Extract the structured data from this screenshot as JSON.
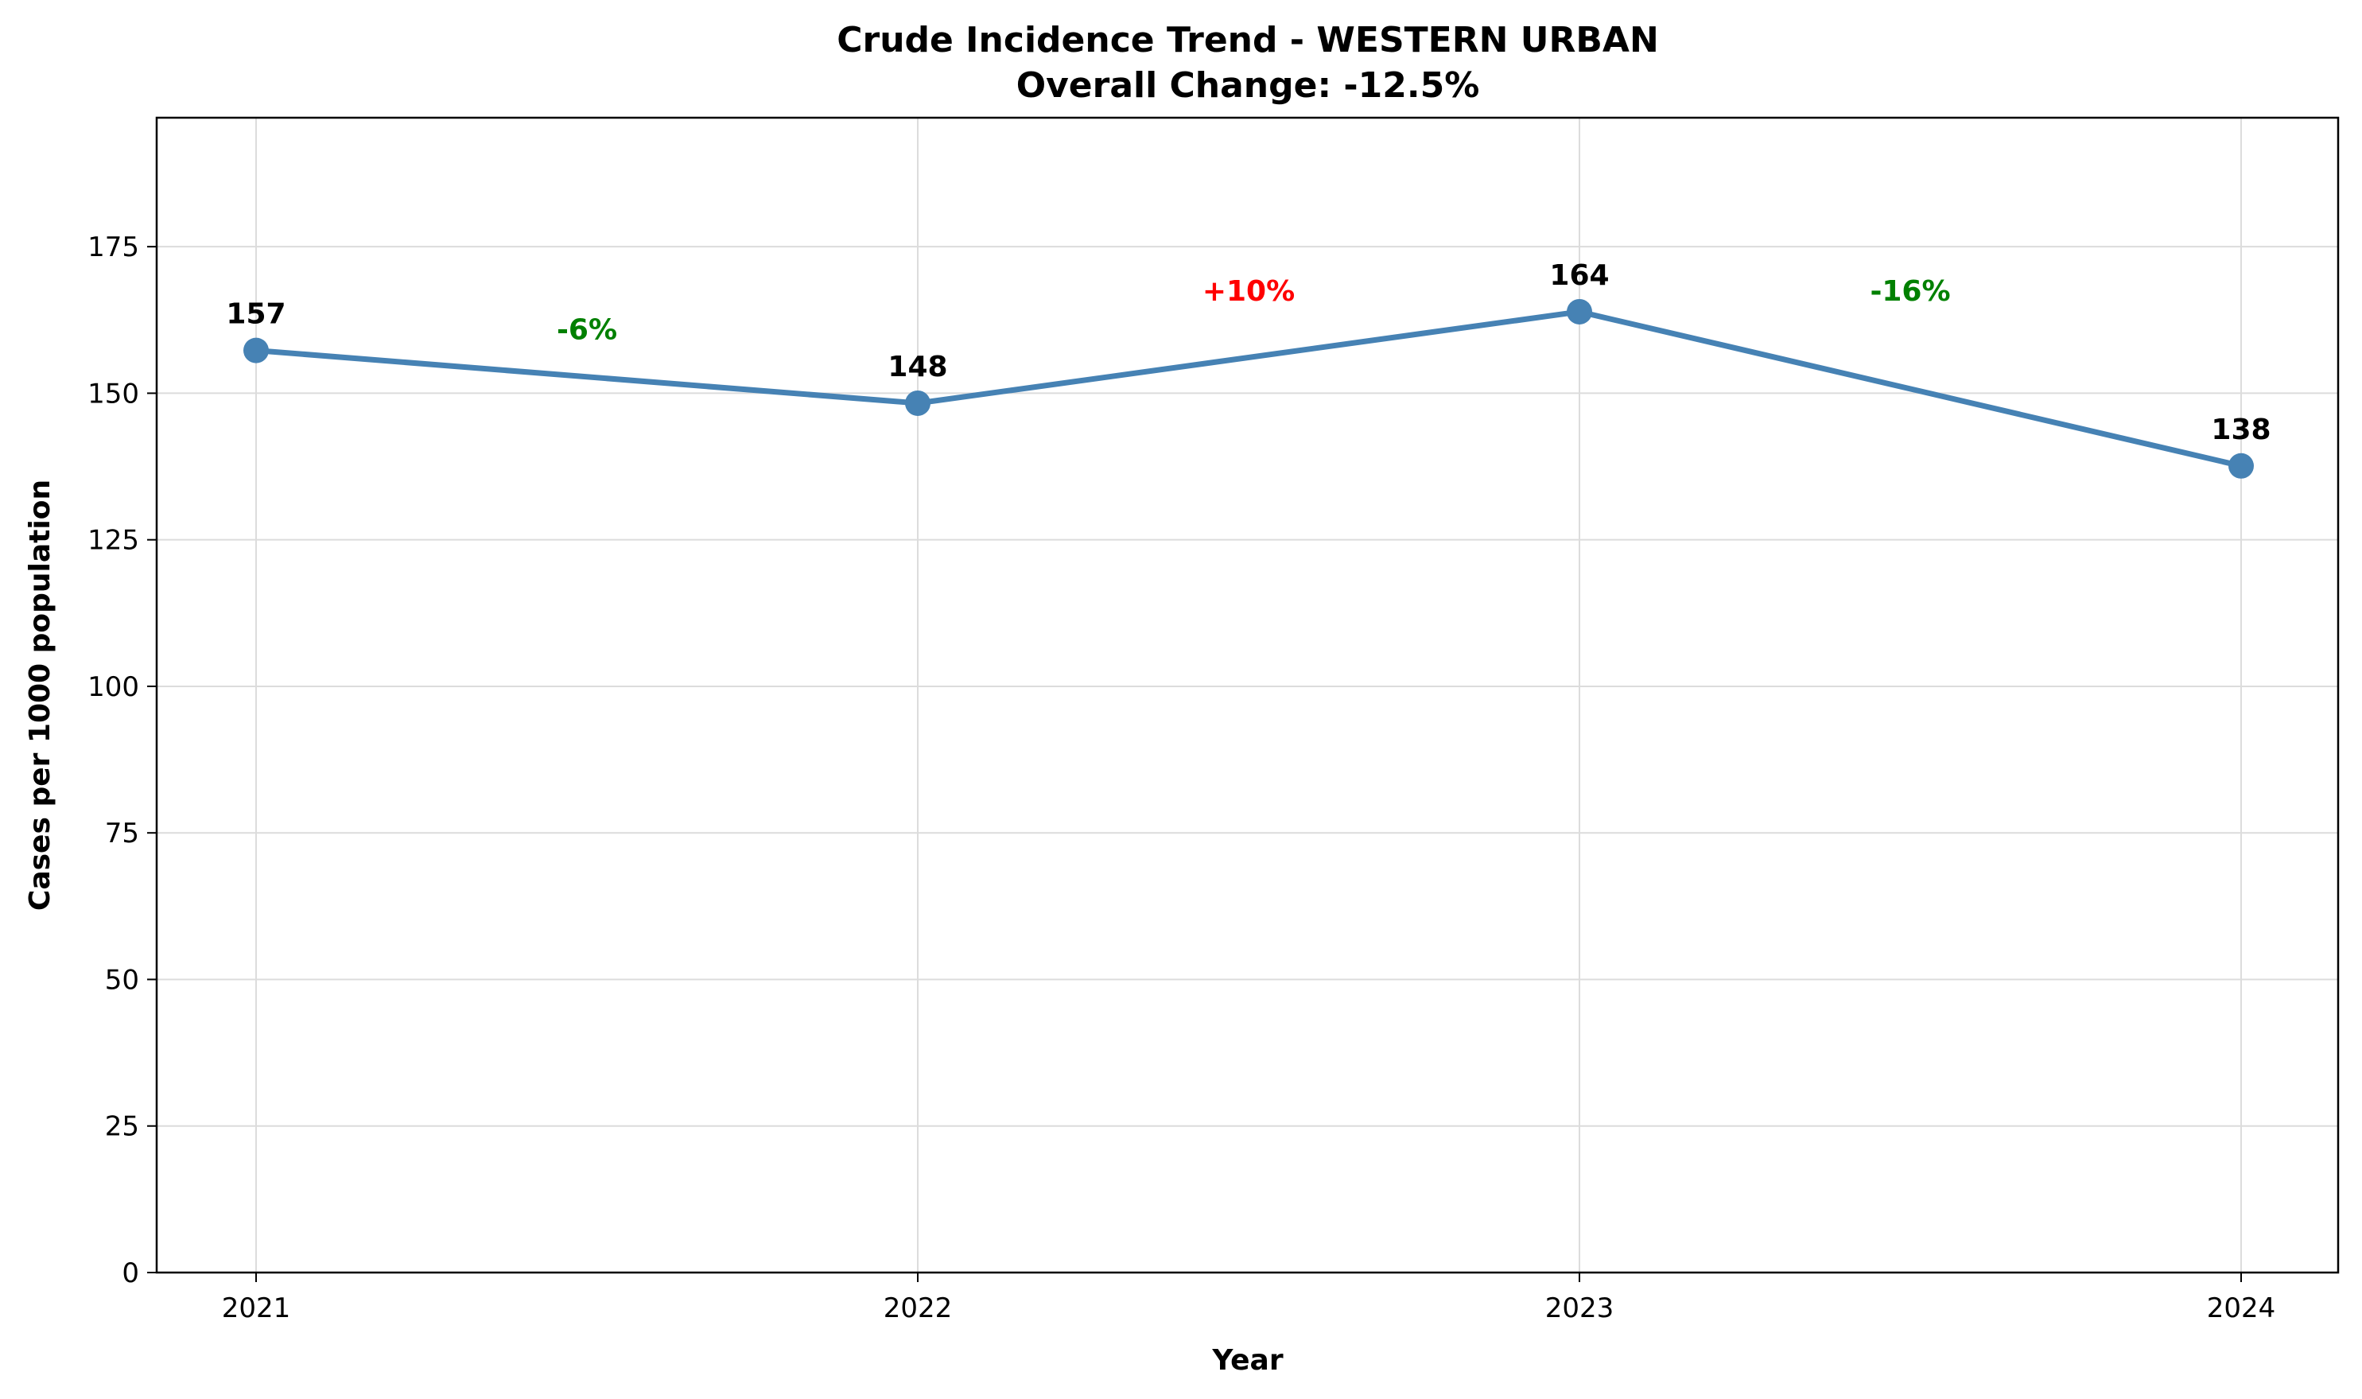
{
  "chart_data": {
    "type": "line",
    "title": "Crude Incidence Trend - WESTERN URBAN",
    "subtitle": "Overall Change: -12.5%",
    "xlabel": "Year",
    "ylabel": "Cases per 1000 population",
    "x": [
      "2021",
      "2022",
      "2023",
      "2024"
    ],
    "series": [
      {
        "values": [
          157.3,
          148.3,
          163.9,
          137.6
        ],
        "labels": [
          "157",
          "148",
          "164",
          "138"
        ]
      }
    ],
    "changes": [
      {
        "label": "-6%",
        "color": "#008000"
      },
      {
        "label": "+10%",
        "color": "#ff0000"
      },
      {
        "label": "-16%",
        "color": "#008000"
      }
    ],
    "yticks": [
      0,
      25,
      50,
      75,
      100,
      125,
      150,
      175
    ],
    "ylim": [
      0,
      197
    ],
    "grid": true,
    "line_color": "#4682b4"
  }
}
